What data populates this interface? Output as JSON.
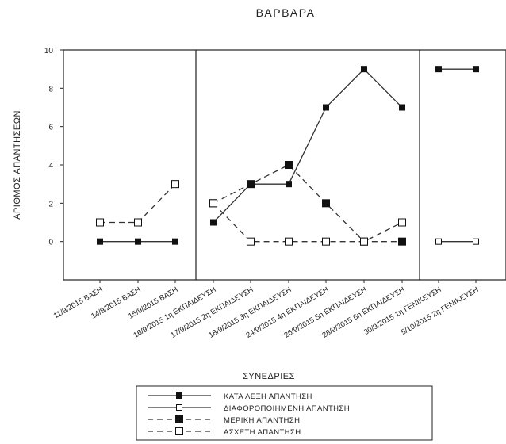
{
  "chart_data": {
    "type": "line",
    "title": "ΒΑΡΒΑΡΑ",
    "xlabel": "ΣΥΝΕΔΡΙΕΣ",
    "ylabel": "ΑΡΙΘΜΟΣ ΑΠΑΝΤΗΣΕΩΝ",
    "ylim": [
      -2,
      10
    ],
    "yticks": [
      0,
      2,
      4,
      6,
      8,
      10
    ],
    "grid": false,
    "legend_position": "bottom",
    "categories": [
      "11/9/2015 ΒΑΣΗ",
      "14/9/2015 ΒΑΣΗ",
      "15/9/2015 ΒΑΣΗ",
      "16/9/2015 1η ΕΚΠΑΙΔΕΥΣΗ",
      "17/9/2015 2η ΕΚΠΑΙΔΕΥΣΗ",
      "18/9/2015 3η ΕΚΠΑΙΔΕΥΣΗ",
      "24/9/2015 4η ΕΚΠΑΙΔΕΥΣΗ",
      "26/9/2015 5η ΕΚΠΑΙΔΕΥΣΗ",
      "28/9/2015 6η ΕΚΠΑΙΔΕΥΣΗ",
      "30/9/2015 1η ΓΕΝΙΚΕΥΣΗ",
      "5/10/2015 2η ΓΕΝΙΚΕΥΣΗ"
    ],
    "phases": [
      {
        "start": 0,
        "end": 2
      },
      {
        "start": 3,
        "end": 8
      },
      {
        "start": 9,
        "end": 10
      }
    ],
    "series": [
      {
        "name": "ΚΑΤΑ ΛΕΞΗ ΑΠΑΝΤΗΣΗ",
        "line": "solid",
        "marker": "filled-square-small",
        "values": [
          0,
          0,
          0,
          1,
          3,
          3,
          7,
          9,
          7,
          9,
          9
        ]
      },
      {
        "name": "ΔΙΑΦΟΡΟΠΟΙΗΜΕΝΗ ΑΠΑΝΤΗΣΗ",
        "line": "solid",
        "marker": "open-square-small",
        "values": [
          null,
          null,
          null,
          null,
          null,
          null,
          null,
          null,
          null,
          0,
          0
        ]
      },
      {
        "name": "ΜΕΡΙΚΗ ΑΠΑΝΤΗΣΗ",
        "line": "dashed",
        "marker": "filled-square",
        "values": [
          null,
          null,
          null,
          2,
          3,
          4,
          2,
          0,
          0,
          null,
          null
        ]
      },
      {
        "name": "ΑΣΧΕΤΗ ΑΠΑΝΤΗΣΗ",
        "line": "dashed",
        "marker": "open-square",
        "values": [
          1,
          1,
          3,
          2,
          0,
          0,
          0,
          0,
          1,
          null,
          null
        ]
      }
    ],
    "colors": {
      "line": "#333333",
      "marker_fill": "#111111",
      "open_fill": "#ffffff"
    }
  }
}
